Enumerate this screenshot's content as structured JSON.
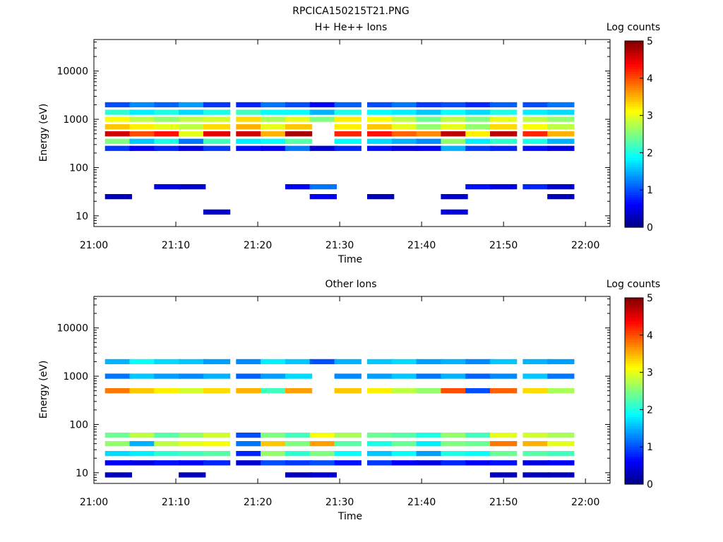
{
  "figure_title": "RPCICA150215T21.PNG",
  "colors": {
    "colormap": [
      "#00007f",
      "#0000ff",
      "#0080ff",
      "#00ffff",
      "#80ff80",
      "#ffff00",
      "#ff8000",
      "#ff0000",
      "#7f0000"
    ]
  },
  "chart_data": [
    {
      "type": "heatmap",
      "title": "H+ He++ Ions",
      "xlabel": "Time",
      "ylabel": "Energy (eV)",
      "yscale": "log",
      "ylim": [
        6,
        45000
      ],
      "xlim": [
        "21:00",
        "22:03"
      ],
      "x_ticks": [
        "21:00",
        "21:10",
        "21:20",
        "21:30",
        "21:40",
        "21:50",
        "22:00"
      ],
      "y_ticks": [
        10,
        100,
        1000,
        10000
      ],
      "y_tick_labels": [
        "10",
        "100",
        "1000",
        "10000"
      ],
      "colorbar": {
        "label": "Log counts",
        "range": [
          0,
          5
        ],
        "ticks": [
          "0",
          "1",
          "2",
          "3",
          "4",
          "5"
        ]
      },
      "time_bins": [
        "21:03",
        "21:06",
        "21:09",
        "21:12",
        "21:15",
        "21:19",
        "21:22",
        "21:25",
        "21:28",
        "21:31",
        "21:35",
        "21:38",
        "21:41",
        "21:44",
        "21:47",
        "21:50",
        "21:54",
        "21:57"
      ],
      "energy_bands": [
        {
          "energy": 500,
          "values": [
            4.6,
            4.0,
            4.3,
            3.0,
            4.5,
            4.6,
            3.5,
            4.8,
            null,
            4.2,
            4.3,
            3.9,
            3.7,
            4.7,
            3.2,
            4.7,
            4.2,
            3.5
          ]
        },
        {
          "energy": 700,
          "values": [
            3.4,
            3.2,
            3.0,
            2.8,
            3.3,
            3.5,
            3.0,
            3.4,
            null,
            3.2,
            3.4,
            3.0,
            2.6,
            3.0,
            2.6,
            3.3,
            3.1,
            2.8
          ]
        },
        {
          "energy": 1000,
          "values": [
            3.1,
            2.8,
            2.6,
            2.8,
            2.9,
            3.3,
            2.7,
            3.0,
            2.5,
            3.2,
            3.1,
            2.8,
            2.4,
            2.8,
            2.5,
            3.0,
            2.8,
            2.6
          ]
        },
        {
          "energy": 1400,
          "values": [
            2.1,
            1.8,
            2.0,
            1.7,
            2.0,
            2.2,
            1.9,
            1.9,
            1.5,
            2.0,
            1.9,
            1.8,
            1.6,
            1.9,
            1.7,
            2.0,
            1.8,
            1.7
          ]
        },
        {
          "energy": 2000,
          "values": [
            1.0,
            1.3,
            1.1,
            1.4,
            0.9,
            0.8,
            1.2,
            1.0,
            0.6,
            1.1,
            1.0,
            1.2,
            0.9,
            1.0,
            0.8,
            1.1,
            1.0,
            1.2
          ]
        },
        {
          "energy": 350,
          "values": [
            2.5,
            1.6,
            2.0,
            1.2,
            2.2,
            1.8,
            1.9,
            2.3,
            null,
            1.9,
            1.7,
            1.5,
            1.3,
            2.6,
            1.8,
            2.1,
            2.0,
            1.5
          ]
        },
        {
          "energy": 250,
          "values": [
            0.9,
            0.6,
            0.8,
            0.5,
            0.9,
            0.7,
            0.6,
            1.2,
            0.4,
            0.8,
            0.7,
            0.5,
            0.6,
            1.5,
            0.9,
            0.8,
            0.7,
            0.5
          ]
        },
        {
          "energy": 40,
          "values": [
            null,
            null,
            0.5,
            0.4,
            null,
            null,
            null,
            0.6,
            1.2,
            null,
            null,
            null,
            null,
            null,
            0.7,
            0.5,
            0.8,
            0.4
          ]
        },
        {
          "energy": 25,
          "values": [
            0.3,
            null,
            null,
            null,
            null,
            null,
            null,
            null,
            0.6,
            null,
            0.3,
            null,
            null,
            0.4,
            null,
            null,
            null,
            0.3
          ]
        },
        {
          "energy": 12,
          "values": [
            null,
            null,
            null,
            null,
            0.4,
            null,
            null,
            null,
            null,
            null,
            null,
            null,
            null,
            0.5,
            null,
            null,
            null,
            null
          ]
        }
      ]
    },
    {
      "type": "heatmap",
      "title": "Other Ions",
      "xlabel": "Time",
      "ylabel": "Energy (eV)",
      "yscale": "log",
      "ylim": [
        6,
        45000
      ],
      "xlim": [
        "21:00",
        "22:03"
      ],
      "x_ticks": [
        "21:00",
        "21:10",
        "21:20",
        "21:30",
        "21:40",
        "21:50",
        "22:00"
      ],
      "y_ticks": [
        10,
        100,
        1000,
        10000
      ],
      "y_tick_labels": [
        "10",
        "100",
        "1000",
        "10000"
      ],
      "colorbar": {
        "label": "Log counts",
        "range": [
          0,
          5
        ],
        "ticks": [
          "0",
          "1",
          "2",
          "3",
          "4",
          "5"
        ]
      },
      "time_bins": [
        "21:03",
        "21:06",
        "21:09",
        "21:12",
        "21:15",
        "21:19",
        "21:22",
        "21:25",
        "21:28",
        "21:31",
        "21:35",
        "21:38",
        "21:41",
        "21:44",
        "21:47",
        "21:50",
        "21:54",
        "21:57"
      ],
      "energy_bands": [
        {
          "energy": 500,
          "values": [
            3.8,
            3.4,
            3.2,
            2.9,
            3.3,
            3.5,
            2.2,
            3.6,
            null,
            3.4,
            3.2,
            2.8,
            2.6,
            4.0,
            1.0,
            3.9,
            3.3,
            2.7
          ]
        },
        {
          "energy": 2000,
          "values": [
            1.5,
            1.9,
            1.7,
            1.6,
            1.4,
            1.3,
            1.8,
            1.6,
            1.0,
            1.5,
            1.6,
            1.7,
            1.4,
            1.5,
            1.3,
            1.6,
            1.5,
            1.4
          ]
        },
        {
          "energy": 1000,
          "values": [
            1.2,
            1.6,
            1.4,
            1.3,
            1.5,
            1.1,
            1.4,
            1.7,
            null,
            1.3,
            1.4,
            1.6,
            1.2,
            1.5,
            1.1,
            1.3,
            1.6,
            1.2
          ]
        },
        {
          "energy": 60,
          "values": [
            2.4,
            2.8,
            2.3,
            2.6,
            2.9,
            1.0,
            2.5,
            2.2,
            3.1,
            2.7,
            2.4,
            2.3,
            2.0,
            2.6,
            2.2,
            3.0,
            2.9,
            2.7
          ]
        },
        {
          "energy": 40,
          "values": [
            2.6,
            1.5,
            2.8,
            3.0,
            3.1,
            1.2,
            3.4,
            2.5,
            3.6,
            2.3,
            2.0,
            2.4,
            1.8,
            2.5,
            2.4,
            3.8,
            3.5,
            3.0
          ]
        },
        {
          "energy": 25,
          "values": [
            1.7,
            1.8,
            2.1,
            2.2,
            2.3,
            0.8,
            2.6,
            2.1,
            2.5,
            1.9,
            1.6,
            1.9,
            1.4,
            2.0,
            1.9,
            2.4,
            2.3,
            2.2
          ]
        },
        {
          "energy": 16,
          "values": [
            0.6,
            0.5,
            0.7,
            0.6,
            0.8,
            0.4,
            1.0,
            0.9,
            1.0,
            0.7,
            0.9,
            0.6,
            0.5,
            0.8,
            0.6,
            0.7,
            0.5,
            0.6
          ]
        },
        {
          "energy": 9,
          "values": [
            0.3,
            null,
            null,
            0.3,
            null,
            null,
            null,
            0.3,
            0.4,
            null,
            null,
            null,
            null,
            null,
            null,
            0.3,
            0.3,
            0.3
          ]
        }
      ]
    }
  ]
}
